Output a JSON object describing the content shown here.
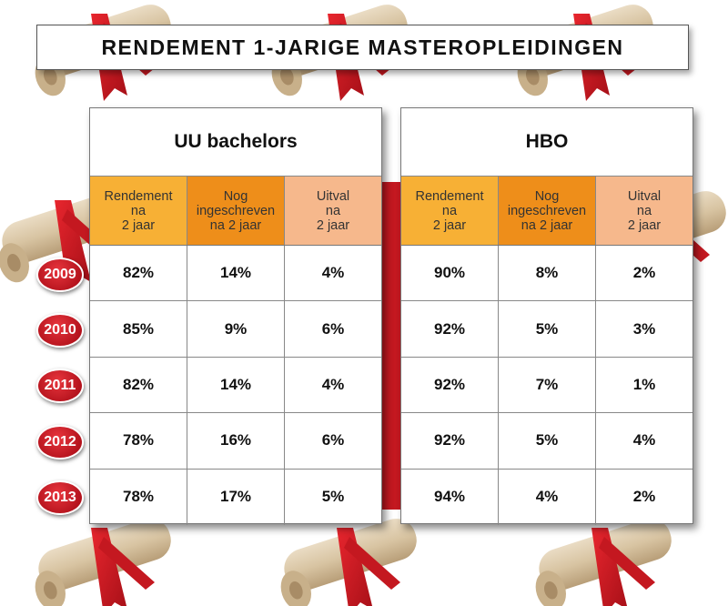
{
  "title": "RENDEMENT 1-JARIGE MASTEROPLEIDINGEN",
  "colors": {
    "rendement_header": "#f7b035",
    "ingeschreven_header": "#ee8e1a",
    "uitval_header": "#f6b88c",
    "year_badge": "#c8161f"
  },
  "years": [
    "2009",
    "2010",
    "2011",
    "2012",
    "2013"
  ],
  "uu": {
    "title": "UU bachelors",
    "headers": [
      "Rendement\nna\n2 jaar",
      "Nog\ningeschreven\nna 2 jaar",
      "Uitval\nna\n2 jaar"
    ],
    "rows": [
      [
        "82%",
        "14%",
        "4%"
      ],
      [
        "85%",
        "9%",
        "6%"
      ],
      [
        "82%",
        "14%",
        "4%"
      ],
      [
        "78%",
        "16%",
        "6%"
      ],
      [
        "78%",
        "17%",
        "5%"
      ]
    ]
  },
  "hbo": {
    "title": "HBO",
    "headers": [
      "Rendement\nna\n2 jaar",
      "Nog\ningeschreven\nna 2 jaar",
      "Uitval\nna\n2 jaar"
    ],
    "rows": [
      [
        "90%",
        "8%",
        "2%"
      ],
      [
        "92%",
        "5%",
        "3%"
      ],
      [
        "92%",
        "7%",
        "1%"
      ],
      [
        "92%",
        "5%",
        "4%"
      ],
      [
        "94%",
        "4%",
        "2%"
      ]
    ]
  },
  "chart_data": {
    "type": "table",
    "title": "RENDEMENT 1-JARIGE MASTEROPLEIDINGEN",
    "row_labels": [
      "2009",
      "2010",
      "2011",
      "2012",
      "2013"
    ],
    "groups": [
      {
        "name": "UU bachelors",
        "columns": [
          "Rendement na 2 jaar",
          "Nog ingeschreven na 2 jaar",
          "Uitval na 2 jaar"
        ],
        "values": [
          [
            82,
            14,
            4
          ],
          [
            85,
            9,
            6
          ],
          [
            82,
            14,
            4
          ],
          [
            78,
            16,
            6
          ],
          [
            78,
            17,
            5
          ]
        ]
      },
      {
        "name": "HBO",
        "columns": [
          "Rendement na 2 jaar",
          "Nog ingeschreven na 2 jaar",
          "Uitval na 2 jaar"
        ],
        "values": [
          [
            90,
            8,
            2
          ],
          [
            92,
            5,
            3
          ],
          [
            92,
            7,
            1
          ],
          [
            92,
            5,
            4
          ],
          [
            94,
            4,
            2
          ]
        ]
      }
    ]
  }
}
